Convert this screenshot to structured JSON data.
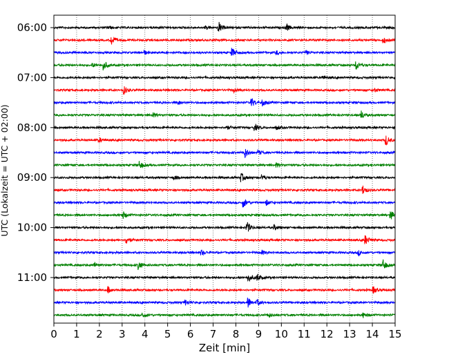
{
  "chart_data": {
    "type": "line",
    "title": "",
    "xlabel": "Zeit  [min]",
    "ylabel": "UTC (Lokalzeit = UTC + 02:00)",
    "xlim": [
      0,
      15
    ],
    "x_ticks": [
      "0",
      "1",
      "2",
      "3",
      "4",
      "5",
      "6",
      "7",
      "8",
      "9",
      "10",
      "11",
      "12",
      "13",
      "14",
      "15"
    ],
    "y_tick_labels": [
      "06:00",
      "07:00",
      "08:00",
      "09:00",
      "10:00",
      "11:00"
    ],
    "grid": "vertical dotted lines at each minute",
    "legend": "none",
    "trace_minutes": 15,
    "traces_per_hour": 4,
    "trace_colors": [
      "#000000",
      "#ff0000",
      "#0000ff",
      "#008000"
    ],
    "series": [
      {
        "start": "06:00",
        "events": [
          [
            2.4,
            0.25
          ],
          [
            6.7,
            0.3
          ],
          [
            7.25,
            1.0
          ],
          [
            10.25,
            0.55
          ]
        ]
      },
      {
        "start": "06:15",
        "events": [
          [
            2.55,
            0.9
          ],
          [
            14.5,
            0.5
          ]
        ]
      },
      {
        "start": "06:30",
        "events": [
          [
            4.0,
            0.3
          ],
          [
            7.85,
            0.75
          ],
          [
            9.8,
            0.35
          ],
          [
            11.1,
            0.3
          ]
        ]
      },
      {
        "start": "06:45",
        "events": [
          [
            1.7,
            0.35
          ],
          [
            2.2,
            0.85
          ],
          [
            13.3,
            0.85
          ]
        ]
      },
      {
        "start": "07:00",
        "events": [
          [
            11.8,
            0.35
          ]
        ]
      },
      {
        "start": "07:15",
        "events": [
          [
            3.1,
            0.7
          ],
          [
            7.9,
            0.35
          ],
          [
            14.1,
            0.35
          ]
        ]
      },
      {
        "start": "07:30",
        "events": [
          [
            5.5,
            0.3
          ],
          [
            8.7,
            0.8
          ],
          [
            9.2,
            0.55
          ]
        ]
      },
      {
        "start": "07:45",
        "events": [
          [
            4.35,
            0.45
          ],
          [
            13.5,
            0.85
          ]
        ]
      },
      {
        "start": "08:00",
        "events": [
          [
            7.6,
            0.35
          ],
          [
            8.85,
            0.5
          ],
          [
            9.8,
            0.35
          ]
        ]
      },
      {
        "start": "08:15",
        "events": [
          [
            2.0,
            0.35
          ],
          [
            14.6,
            1.0
          ]
        ]
      },
      {
        "start": "08:30",
        "events": [
          [
            8.4,
            0.9
          ],
          [
            9.0,
            0.4
          ]
        ]
      },
      {
        "start": "08:45",
        "events": [
          [
            3.8,
            0.6
          ],
          [
            9.8,
            0.35
          ]
        ]
      },
      {
        "start": "09:00",
        "events": [
          [
            5.3,
            0.35
          ],
          [
            8.25,
            0.75
          ],
          [
            9.15,
            0.55
          ]
        ]
      },
      {
        "start": "09:15",
        "events": [
          [
            13.6,
            0.8
          ]
        ]
      },
      {
        "start": "09:30",
        "events": [
          [
            8.35,
            0.8
          ],
          [
            9.35,
            0.45
          ]
        ]
      },
      {
        "start": "09:45",
        "events": [
          [
            3.05,
            0.6
          ],
          [
            14.8,
            0.85
          ]
        ]
      },
      {
        "start": "10:00",
        "events": [
          [
            8.5,
            1.0
          ],
          [
            9.7,
            0.45
          ]
        ]
      },
      {
        "start": "10:15",
        "events": [
          [
            3.2,
            0.75
          ],
          [
            13.7,
            0.85
          ]
        ]
      },
      {
        "start": "10:30",
        "events": [
          [
            6.5,
            0.45
          ],
          [
            9.15,
            0.4
          ],
          [
            13.4,
            0.45
          ]
        ]
      },
      {
        "start": "10:45",
        "events": [
          [
            1.8,
            0.35
          ],
          [
            3.75,
            0.75
          ],
          [
            14.5,
            0.9
          ]
        ]
      },
      {
        "start": "11:00",
        "events": [
          [
            8.55,
            0.85
          ],
          [
            8.95,
            0.6
          ]
        ]
      },
      {
        "start": "11:15",
        "events": [
          [
            2.4,
            0.5
          ],
          [
            14.05,
            0.6
          ]
        ]
      },
      {
        "start": "11:30",
        "events": [
          [
            5.8,
            0.45
          ],
          [
            8.55,
            0.9
          ],
          [
            8.95,
            0.5
          ]
        ]
      },
      {
        "start": "11:45",
        "events": [
          [
            3.9,
            0.55
          ],
          [
            9.45,
            0.4
          ],
          [
            13.6,
            0.45
          ]
        ]
      }
    ]
  }
}
